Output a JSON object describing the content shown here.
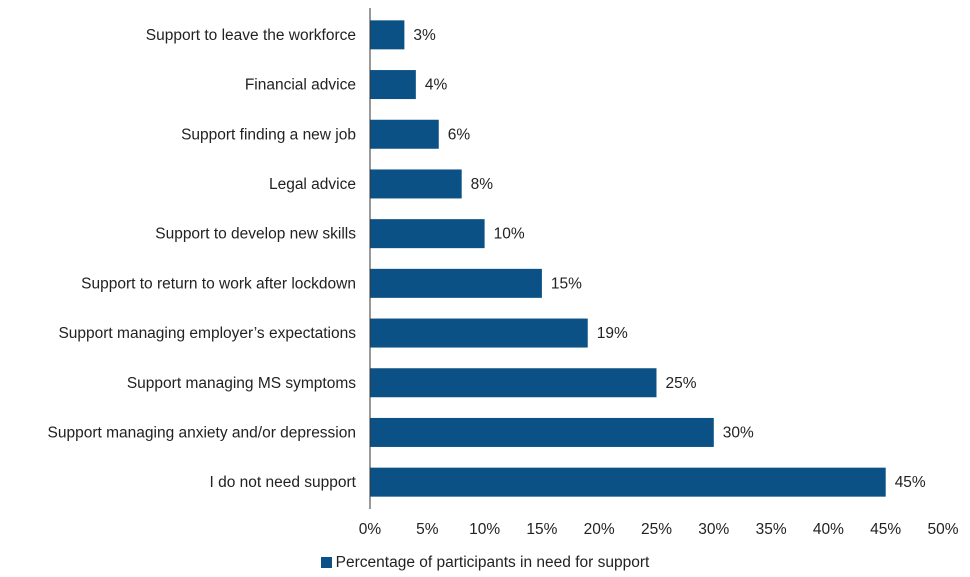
{
  "chart_data": {
    "type": "bar",
    "orientation": "horizontal",
    "categories": [
      "Support to leave the workforce",
      "Financial advice",
      "Support finding a new job",
      "Legal advice",
      "Support to develop new skills",
      "Support to return to work after lockdown",
      "Support managing employer’s expectations",
      "Support managing MS symptoms",
      "Support managing anxiety and/or depression",
      "I do not need support"
    ],
    "series": [
      {
        "name": "Percentage of participants in need for support",
        "values": [
          3,
          4,
          6,
          8,
          10,
          15,
          19,
          25,
          30,
          45
        ],
        "value_labels": [
          "3%",
          "4%",
          "6%",
          "8%",
          "10%",
          "15%",
          "19%",
          "25%",
          "30%",
          "45%"
        ],
        "color": "#0c5185"
      }
    ],
    "xlim": [
      0,
      50
    ],
    "x_ticks": [
      0,
      5,
      10,
      15,
      20,
      25,
      30,
      35,
      40,
      45,
      50
    ],
    "x_tick_labels": [
      "0%",
      "5%",
      "10%",
      "15%",
      "20%",
      "25%",
      "30%",
      "35%",
      "40%",
      "45%",
      "50%"
    ],
    "grid": false,
    "legend_position": "bottom",
    "title": "",
    "xlabel": "",
    "ylabel": ""
  },
  "legend": {
    "label": "Percentage of participants in need for support"
  }
}
